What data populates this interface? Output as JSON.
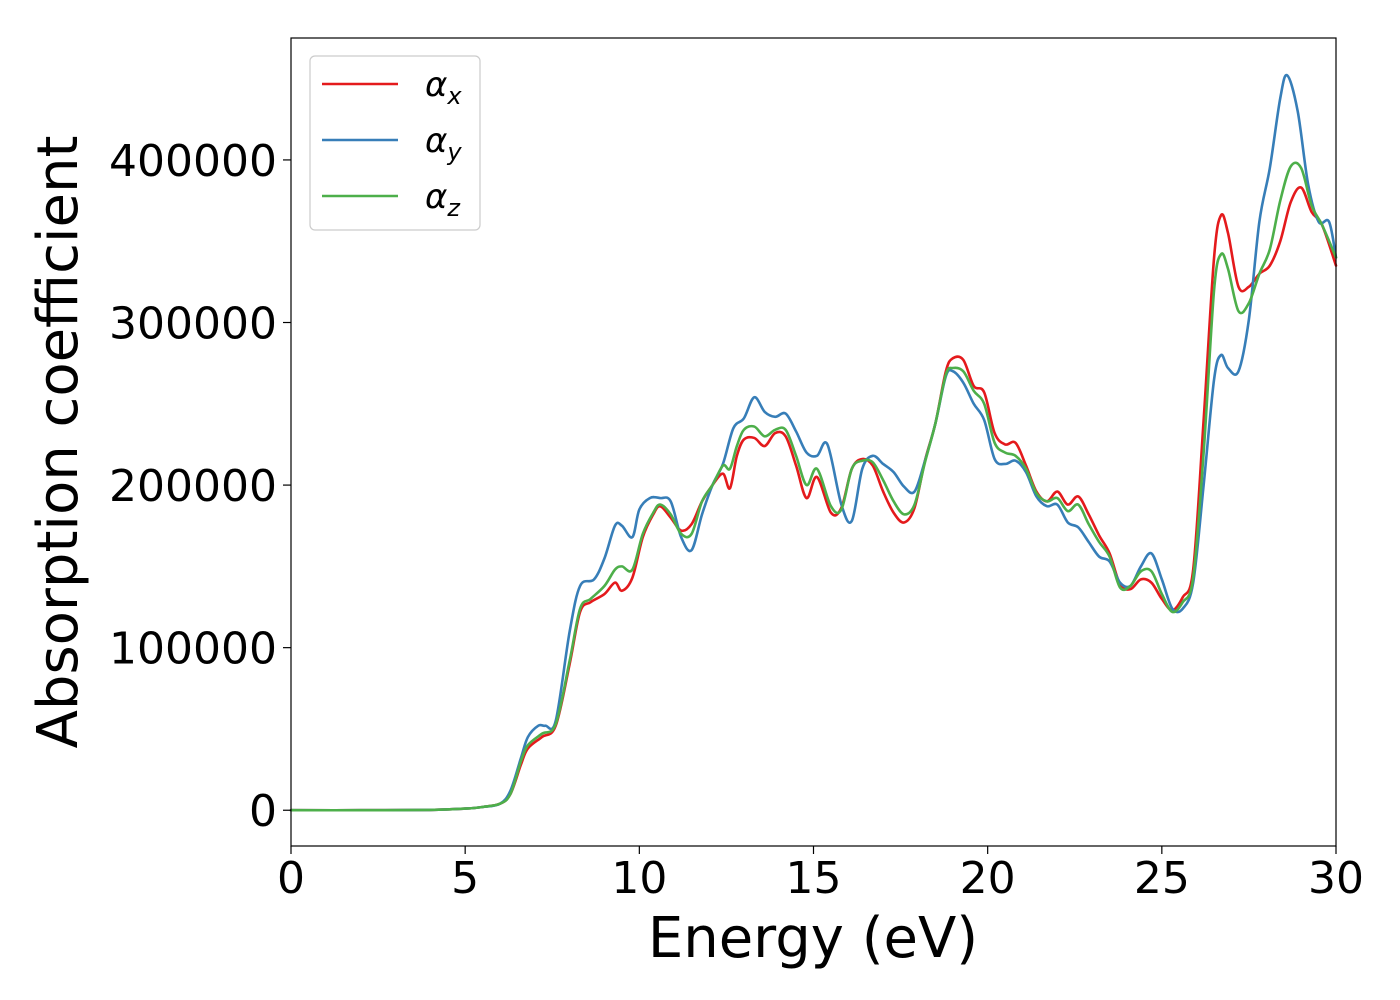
{
  "chart_data": {
    "type": "line",
    "title": "",
    "xlabel": "Energy (eV)",
    "ylabel": "Absorption coefficient",
    "xlim": [
      0,
      30
    ],
    "ylim": [
      -22000,
      475000
    ],
    "xticks": [
      0,
      5,
      10,
      15,
      20,
      25,
      30
    ],
    "yticks": [
      0,
      100000,
      200000,
      300000,
      400000
    ],
    "grid": false,
    "legend_position": "top-left",
    "series": [
      {
        "name": "α_x",
        "base": "α",
        "sub": "x",
        "color": "#e41a1c",
        "x": [
          0,
          2,
          4,
          5,
          5.5,
          6,
          6.3,
          6.6,
          6.8,
          7.2,
          7.6,
          8.0,
          8.3,
          8.6,
          9.0,
          9.3,
          9.5,
          9.8,
          10.1,
          10.4,
          10.6,
          10.9,
          11.2,
          11.5,
          11.8,
          12.1,
          12.4,
          12.6,
          12.8,
          13.0,
          13.3,
          13.6,
          13.9,
          14.2,
          14.5,
          14.8,
          15.1,
          15.5,
          15.8,
          16.1,
          16.4,
          16.7,
          17.0,
          17.3,
          17.6,
          17.9,
          18.2,
          18.5,
          18.8,
          19.0,
          19.3,
          19.6,
          19.9,
          20.2,
          20.5,
          20.8,
          21.1,
          21.4,
          21.7,
          22.0,
          22.3,
          22.6,
          22.9,
          23.2,
          23.5,
          23.8,
          24.1,
          24.4,
          24.7,
          25.0,
          25.3,
          25.6,
          25.9,
          26.2,
          26.5,
          26.7,
          26.9,
          27.2,
          27.5,
          27.8,
          28.1,
          28.4,
          28.7,
          29.0,
          29.3,
          29.6,
          30.0
        ],
        "values": [
          0,
          0,
          200,
          1000,
          2000,
          4000,
          10000,
          28000,
          38000,
          45000,
          52000,
          90000,
          122000,
          128000,
          133000,
          140000,
          135000,
          143000,
          168000,
          182000,
          187000,
          180000,
          172000,
          176000,
          190000,
          200000,
          207000,
          198000,
          218000,
          228000,
          229000,
          224000,
          232000,
          230000,
          212000,
          192000,
          205000,
          183000,
          186000,
          210000,
          216000,
          212000,
          196000,
          183000,
          177000,
          186000,
          215000,
          238000,
          270000,
          278000,
          277000,
          261000,
          257000,
          232000,
          225000,
          226000,
          212000,
          196000,
          190000,
          196000,
          188000,
          193000,
          182000,
          169000,
          158000,
          139000,
          136000,
          142000,
          140000,
          130000,
          123000,
          131000,
          148000,
          240000,
          340000,
          366000,
          355000,
          322000,
          322000,
          330000,
          335000,
          350000,
          374000,
          383000,
          368000,
          360000,
          335000
        ]
      },
      {
        "name": "α_y",
        "base": "α",
        "sub": "y",
        "color": "#377eb8",
        "x": [
          0,
          2,
          4,
          5,
          5.5,
          6,
          6.3,
          6.6,
          6.8,
          7.1,
          7.3,
          7.6,
          8.0,
          8.3,
          8.7,
          9.0,
          9.3,
          9.5,
          9.8,
          10.0,
          10.3,
          10.6,
          10.9,
          11.2,
          11.5,
          11.8,
          12.1,
          12.4,
          12.7,
          13.0,
          13.3,
          13.6,
          13.9,
          14.2,
          14.5,
          14.8,
          15.1,
          15.4,
          15.8,
          16.1,
          16.4,
          16.7,
          17.0,
          17.3,
          17.6,
          17.9,
          18.2,
          18.5,
          18.8,
          19.0,
          19.3,
          19.6,
          19.9,
          20.2,
          20.5,
          20.8,
          21.1,
          21.4,
          21.7,
          22.0,
          22.3,
          22.6,
          22.9,
          23.2,
          23.5,
          23.8,
          24.1,
          24.4,
          24.7,
          25.0,
          25.3,
          25.6,
          25.9,
          26.2,
          26.5,
          26.7,
          26.9,
          27.2,
          27.5,
          27.8,
          28.1,
          28.4,
          28.6,
          28.9,
          29.2,
          29.5,
          29.8,
          30.0
        ],
        "values": [
          0,
          0,
          200,
          1000,
          2000,
          4000,
          12000,
          32000,
          45000,
          52000,
          52000,
          55000,
          110000,
          138000,
          142000,
          155000,
          175000,
          175000,
          168000,
          185000,
          192000,
          192000,
          190000,
          168000,
          160000,
          182000,
          200000,
          213000,
          235000,
          241000,
          254000,
          245000,
          242000,
          244000,
          233000,
          220000,
          218000,
          225000,
          188000,
          178000,
          210000,
          218000,
          213000,
          208000,
          199000,
          196000,
          215000,
          238000,
          267000,
          270000,
          263000,
          250000,
          240000,
          216000,
          213000,
          215000,
          208000,
          193000,
          187000,
          188000,
          177000,
          174000,
          165000,
          156000,
          153000,
          140000,
          138000,
          150000,
          158000,
          142000,
          124000,
          124000,
          140000,
          200000,
          265000,
          280000,
          272000,
          270000,
          302000,
          362000,
          395000,
          438000,
          452000,
          430000,
          385000,
          362000,
          362000,
          340000
        ]
      },
      {
        "name": "α_z",
        "base": "α",
        "sub": "z",
        "color": "#4daf4a",
        "x": [
          0,
          2,
          4,
          5,
          5.5,
          6,
          6.3,
          6.6,
          6.8,
          7.2,
          7.6,
          8.0,
          8.3,
          8.6,
          9.0,
          9.3,
          9.5,
          9.8,
          10.1,
          10.4,
          10.6,
          10.9,
          11.2,
          11.5,
          11.8,
          12.1,
          12.4,
          12.6,
          12.8,
          13.0,
          13.3,
          13.6,
          13.9,
          14.2,
          14.5,
          14.8,
          15.1,
          15.5,
          15.8,
          16.1,
          16.4,
          16.7,
          17.0,
          17.3,
          17.6,
          17.9,
          18.2,
          18.5,
          18.8,
          19.0,
          19.3,
          19.6,
          19.9,
          20.2,
          20.5,
          20.8,
          21.1,
          21.4,
          21.7,
          22.0,
          22.3,
          22.6,
          22.9,
          23.2,
          23.5,
          23.8,
          24.1,
          24.4,
          24.7,
          25.0,
          25.3,
          25.6,
          25.9,
          26.2,
          26.5,
          26.7,
          26.9,
          27.2,
          27.5,
          27.8,
          28.1,
          28.4,
          28.7,
          29.0,
          29.3,
          29.6,
          30.0
        ],
        "values": [
          0,
          0,
          200,
          1000,
          2000,
          4000,
          10000,
          30000,
          40000,
          47000,
          53000,
          92000,
          124000,
          130000,
          138000,
          148000,
          150000,
          148000,
          170000,
          183000,
          188000,
          182000,
          170000,
          170000,
          190000,
          200000,
          212000,
          210000,
          224000,
          234000,
          236000,
          230000,
          234000,
          234000,
          218000,
          200000,
          210000,
          187000,
          185000,
          210000,
          215000,
          214000,
          203000,
          190000,
          182000,
          188000,
          214000,
          238000,
          268000,
          272000,
          270000,
          258000,
          250000,
          226000,
          220000,
          218000,
          210000,
          195000,
          190000,
          192000,
          184000,
          188000,
          176000,
          165000,
          156000,
          137000,
          138000,
          147000,
          147000,
          133000,
          122000,
          128000,
          143000,
          220000,
          320000,
          342000,
          333000,
          307000,
          312000,
          330000,
          345000,
          375000,
          396000,
          395000,
          372000,
          360000,
          340000
        ]
      }
    ]
  }
}
